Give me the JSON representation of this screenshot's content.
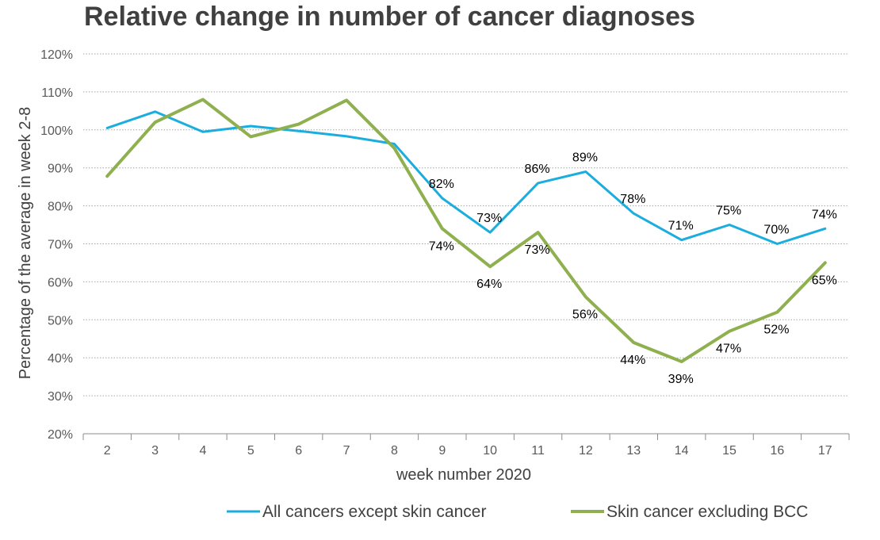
{
  "chart_data": {
    "type": "line",
    "title": "Relative change in number of cancer diagnoses",
    "xlabel": "week number 2020",
    "ylabel": "Percentage of the average in week 2-8",
    "categories": [
      "2",
      "3",
      "4",
      "5",
      "6",
      "7",
      "8",
      "9",
      "10",
      "11",
      "12",
      "13",
      "14",
      "15",
      "16",
      "17"
    ],
    "yticks": [
      "20%",
      "30%",
      "40%",
      "50%",
      "60%",
      "70%",
      "80%",
      "90%",
      "100%",
      "110%",
      "120%"
    ],
    "ylim": [
      20,
      120
    ],
    "grid": true,
    "legend_position": "bottom",
    "series": [
      {
        "name": "All cancers except skin cancer",
        "color": "#1AADDE",
        "values": [
          100.5,
          104.8,
          99.5,
          101.0,
          99.7,
          98.3,
          96.3,
          82,
          73,
          86,
          89,
          78,
          71,
          75,
          70,
          74
        ],
        "labels": [
          "",
          "",
          "",
          "",
          "",
          "",
          "",
          "82%",
          "73%",
          "86%",
          "89%",
          "78%",
          "71%",
          "75%",
          "70%",
          "74%"
        ]
      },
      {
        "name": "Skin cancer excluding BCC",
        "color": "#8FB04F",
        "values": [
          87.8,
          102.0,
          108.0,
          98.2,
          101.5,
          107.8,
          95.2,
          74,
          64,
          73,
          56,
          44,
          39,
          47,
          52,
          65
        ],
        "labels": [
          "",
          "",
          "",
          "",
          "",
          "",
          "",
          "74%",
          "64%",
          "73%",
          "56%",
          "44%",
          "39%",
          "47%",
          "52%",
          "65%"
        ]
      }
    ]
  }
}
